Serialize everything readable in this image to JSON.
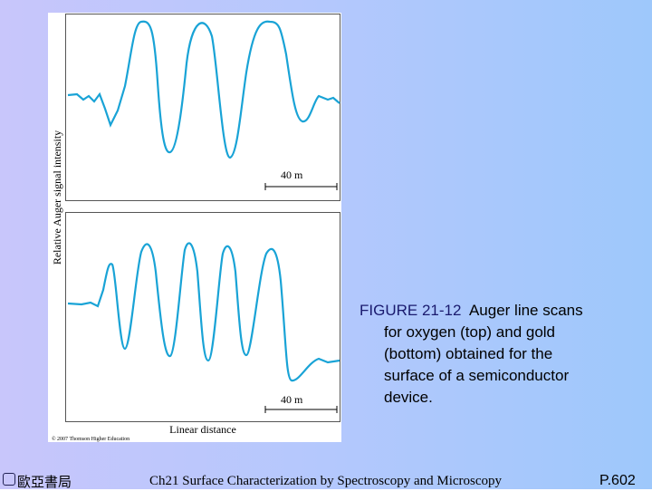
{
  "figure": {
    "y_axis_label": "Relative Auger signal intensity",
    "scale_bar_top": "40   m",
    "scale_bar_bottom": "40   m",
    "x_axis_label": "Linear distance",
    "copyright": "© 2007 Thomson Higher Education"
  },
  "caption": {
    "label": "FIGURE 21-12",
    "lines": [
      "Auger line scans",
      "for oxygen (top) and gold",
      "(bottom) obtained for the",
      "surface of a semiconductor",
      "device."
    ]
  },
  "footer": {
    "publisher": "歐亞書局",
    "chapter": "Ch21 Surface Characterization by Spectroscopy and Microscopy",
    "page": "P.602"
  }
}
